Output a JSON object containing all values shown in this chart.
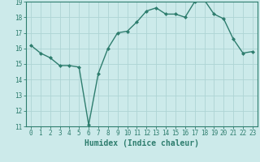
{
  "x": [
    0,
    1,
    2,
    3,
    4,
    5,
    6,
    7,
    8,
    9,
    10,
    11,
    12,
    13,
    14,
    15,
    16,
    17,
    18,
    19,
    20,
    21,
    22,
    23
  ],
  "y": [
    16.2,
    15.7,
    15.4,
    14.9,
    14.9,
    14.8,
    11.1,
    14.4,
    16.0,
    17.0,
    17.1,
    17.7,
    18.4,
    18.6,
    18.2,
    18.2,
    18.0,
    19.0,
    19.1,
    18.2,
    17.9,
    16.6,
    15.7,
    15.8
  ],
  "line_color": "#2e7d6e",
  "marker": "D",
  "marker_size": 2.0,
  "bg_color": "#cceaea",
  "grid_color": "#aed4d4",
  "xlabel": "Humidex (Indice chaleur)",
  "ylim": [
    11,
    19
  ],
  "xlim": [
    -0.5,
    23.5
  ],
  "yticks": [
    11,
    12,
    13,
    14,
    15,
    16,
    17,
    18,
    19
  ],
  "xticks": [
    0,
    1,
    2,
    3,
    4,
    5,
    6,
    7,
    8,
    9,
    10,
    11,
    12,
    13,
    14,
    15,
    16,
    17,
    18,
    19,
    20,
    21,
    22,
    23
  ],
  "tick_fontsize": 5.5,
  "xlabel_fontsize": 7.0,
  "line_width": 1.0
}
